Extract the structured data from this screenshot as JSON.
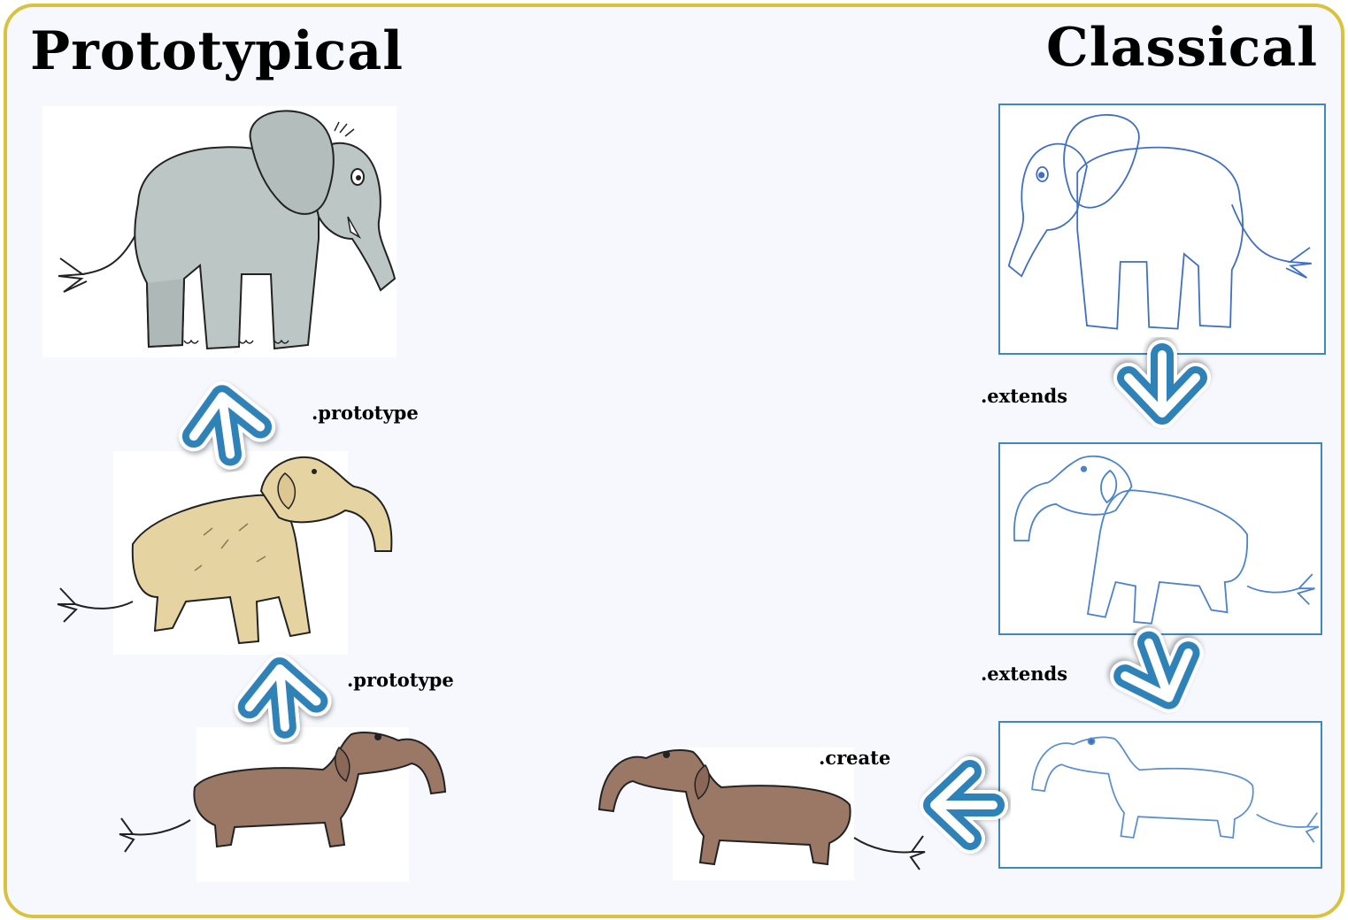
{
  "titles": {
    "left": "Prototypical",
    "right": "Classical"
  },
  "labels": {
    "prototype_1": ".prototype",
    "prototype_2": ".prototype",
    "extends_1": ".extends",
    "extends_2": ".extends",
    "create": ".create"
  },
  "colors": {
    "border": "#d8c23e",
    "background": "#f7f8fd",
    "arrow": "#2e82b8",
    "box_border": "#3e87bf",
    "elephant_fill": "#bcc6c4",
    "dog_fill": "#e6d3a2",
    "dachshund_fill": "#9b7866",
    "outline_blue": "#3f6fc4",
    "outline_lightblue": "#5a8fd0"
  },
  "icons": {
    "animals": [
      "elephant-icon",
      "elephant-dog-icon",
      "elephant-dachshund-icon"
    ],
    "arrows": [
      "arrow-up-icon",
      "arrow-down-icon",
      "arrow-left-icon"
    ]
  }
}
